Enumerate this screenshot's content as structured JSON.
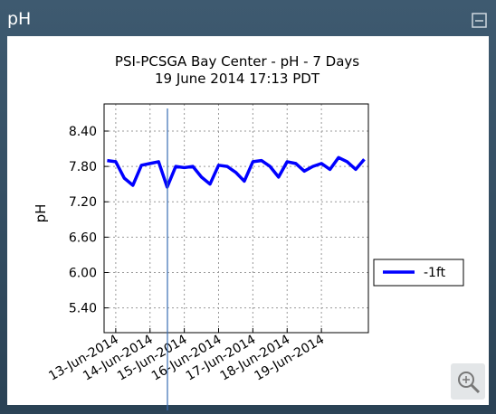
{
  "panel": {
    "title": "pH"
  },
  "chart_data": {
    "type": "line",
    "title": "PSI-PCSGA Bay Center - pH - 7 Days",
    "subtitle": "19 June 2014 17:13 PDT",
    "y_label": "pH",
    "x": [
      12.75,
      13.0,
      13.25,
      13.5,
      13.75,
      14.0,
      14.25,
      14.5,
      14.75,
      15.0,
      15.25,
      15.5,
      15.75,
      16.0,
      16.25,
      16.5,
      16.75,
      17.0,
      17.25,
      17.5,
      17.75,
      18.0,
      18.25,
      18.5,
      18.75,
      19.0,
      19.25,
      19.5,
      19.75,
      20.0,
      20.25
    ],
    "series": [
      {
        "name": "-1ft",
        "color": "#0000ff",
        "values": [
          7.9,
          7.88,
          7.6,
          7.48,
          7.82,
          7.85,
          7.88,
          7.45,
          7.8,
          7.78,
          7.8,
          7.62,
          7.5,
          7.82,
          7.8,
          7.7,
          7.55,
          7.88,
          7.9,
          7.8,
          7.62,
          7.88,
          7.85,
          7.72,
          7.8,
          7.85,
          7.75,
          7.95,
          7.88,
          7.75,
          7.92
        ]
      }
    ],
    "xlim": [
      12.66,
      20.37
    ],
    "xticks": [
      {
        "value": 13,
        "label": "13-Jun-2014"
      },
      {
        "value": 14,
        "label": "14-Jun-2014"
      },
      {
        "value": 15,
        "label": "15-Jun-2014"
      },
      {
        "value": 16,
        "label": "16-Jun-2014"
      },
      {
        "value": 17,
        "label": "17-Jun-2014"
      },
      {
        "value": 18,
        "label": "18-Jun-2014"
      },
      {
        "value": 19,
        "label": "19-Jun-2014"
      }
    ],
    "ylim": [
      4.98,
      8.86
    ],
    "yticks": [
      {
        "value": 5.4,
        "label": "5.40"
      },
      {
        "value": 6.0,
        "label": "6.00"
      },
      {
        "value": 6.6,
        "label": "6.60"
      },
      {
        "value": 7.2,
        "label": "7.20"
      },
      {
        "value": 7.8,
        "label": "7.80"
      },
      {
        "value": 8.4,
        "label": "8.40"
      }
    ],
    "grid": true,
    "legend": "right"
  }
}
